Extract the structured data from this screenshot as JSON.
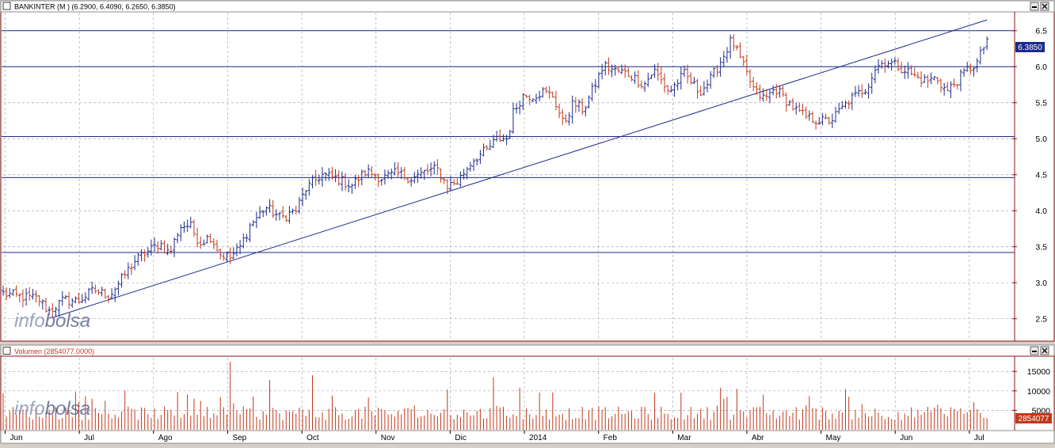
{
  "price_panel": {
    "title": "BANKINTER (M ) (6.2900, 6.4090, 6.2650, 6.3850)",
    "last_price_label": "6.3850",
    "watermark_prefix": "info",
    "watermark_suffix": "bolsa"
  },
  "volume_panel": {
    "title": "Volumen (2854077.0000)",
    "last_volume_label": "2854077",
    "watermark_prefix": "info",
    "watermark_suffix": "bolsa"
  },
  "colors": {
    "up_bar": "#1c2a8c",
    "down_bar": "#c0391b",
    "volume_bar": "#c0391b",
    "trendline": "#1c2a8c",
    "hline": "#1c2a8c",
    "grid": "#a8a8a8",
    "frame": "#8c1010",
    "last_label_bg": "#1c2a8c",
    "volume_label_bg": "#c0391b"
  },
  "chart_data": [
    {
      "type": "ohlc",
      "title": "BANKINTER (M ) (6.2900, 6.4090, 6.2650, 6.3850)",
      "ylim": [
        2.2,
        6.75
      ],
      "y_ticks": [
        2.5,
        3.0,
        3.5,
        4.0,
        4.5,
        5.0,
        5.5,
        6.0,
        6.5
      ],
      "y_tick_labels": [
        "2.5",
        "3.0",
        "3.5",
        "4.0",
        "4.5",
        "5.0",
        "5.5",
        "6.0",
        "6.5"
      ],
      "x_labels": [
        "Jun",
        "Jul",
        "Ago",
        "Sep",
        "Oct",
        "Nov",
        "Dic",
        "2014",
        "Feb",
        "Mar",
        "Abr",
        "May",
        "Jun",
        "Jul"
      ],
      "grid": true,
      "horizontal_lines": [
        6.5,
        6.0,
        5.03,
        4.46,
        3.42
      ],
      "trendline": {
        "start": [
          0.05,
          2.52
        ],
        "end": [
          0.975,
          6.65
        ]
      },
      "last_close": 6.385,
      "anchors": [
        [
          0.0,
          2.85
        ],
        [
          0.02,
          2.8
        ],
        [
          0.035,
          2.78
        ],
        [
          0.045,
          2.6
        ],
        [
          0.06,
          2.76
        ],
        [
          0.075,
          2.75
        ],
        [
          0.09,
          2.9
        ],
        [
          0.105,
          2.82
        ],
        [
          0.115,
          3.0
        ],
        [
          0.13,
          3.3
        ],
        [
          0.145,
          3.45
        ],
        [
          0.155,
          3.55
        ],
        [
          0.165,
          3.4
        ],
        [
          0.175,
          3.78
        ],
        [
          0.185,
          3.8
        ],
        [
          0.195,
          3.55
        ],
        [
          0.205,
          3.65
        ],
        [
          0.215,
          3.4
        ],
        [
          0.225,
          3.35
        ],
        [
          0.235,
          3.5
        ],
        [
          0.245,
          3.8
        ],
        [
          0.26,
          4.05
        ],
        [
          0.275,
          3.9
        ],
        [
          0.29,
          4.0
        ],
        [
          0.3,
          4.3
        ],
        [
          0.315,
          4.5
        ],
        [
          0.33,
          4.45
        ],
        [
          0.345,
          4.35
        ],
        [
          0.36,
          4.55
        ],
        [
          0.375,
          4.45
        ],
        [
          0.39,
          4.52
        ],
        [
          0.405,
          4.45
        ],
        [
          0.42,
          4.55
        ],
        [
          0.43,
          4.58
        ],
        [
          0.44,
          4.35
        ],
        [
          0.45,
          4.4
        ],
        [
          0.465,
          4.7
        ],
        [
          0.48,
          4.85
        ],
        [
          0.49,
          5.0
        ],
        [
          0.5,
          5.0
        ],
        [
          0.505,
          5.35
        ],
        [
          0.515,
          5.6
        ],
        [
          0.525,
          5.6
        ],
        [
          0.535,
          5.65
        ],
        [
          0.545,
          5.6
        ],
        [
          0.555,
          5.2
        ],
        [
          0.565,
          5.5
        ],
        [
          0.575,
          5.4
        ],
        [
          0.585,
          5.7
        ],
        [
          0.595,
          6.02
        ],
        [
          0.605,
          5.95
        ],
        [
          0.62,
          5.9
        ],
        [
          0.635,
          5.75
        ],
        [
          0.645,
          5.95
        ],
        [
          0.66,
          5.65
        ],
        [
          0.675,
          5.9
        ],
        [
          0.69,
          5.65
        ],
        [
          0.7,
          5.8
        ],
        [
          0.712,
          6.1
        ],
        [
          0.722,
          6.38
        ],
        [
          0.732,
          6.05
        ],
        [
          0.745,
          5.65
        ],
        [
          0.755,
          5.55
        ],
        [
          0.765,
          5.7
        ],
        [
          0.775,
          5.55
        ],
        [
          0.785,
          5.4
        ],
        [
          0.795,
          5.3
        ],
        [
          0.81,
          5.25
        ],
        [
          0.82,
          5.25
        ],
        [
          0.83,
          5.4
        ],
        [
          0.84,
          5.55
        ],
        [
          0.855,
          5.7
        ],
        [
          0.865,
          6.0
        ],
        [
          0.875,
          6.08
        ],
        [
          0.885,
          6.02
        ],
        [
          0.895,
          5.95
        ],
        [
          0.905,
          5.85
        ],
        [
          0.915,
          5.8
        ],
        [
          0.925,
          5.85
        ],
        [
          0.935,
          5.65
        ],
        [
          0.945,
          5.8
        ],
        [
          0.955,
          5.95
        ],
        [
          0.965,
          6.05
        ],
        [
          0.975,
          6.38
        ]
      ]
    },
    {
      "type": "bar",
      "title": "Volumen (2854077.0000)",
      "ylim": [
        0,
        18500
      ],
      "y_ticks": [
        5000,
        10000,
        15000
      ],
      "y_tick_labels": [
        "5000",
        "10000",
        "15000"
      ],
      "grid": true,
      "last_volume": 2854077,
      "spikes": [
        [
          0.225,
          17500
        ],
        [
          0.263,
          12800
        ],
        [
          0.305,
          14000
        ],
        [
          0.485,
          13500
        ],
        [
          0.512,
          10800
        ],
        [
          0.71,
          10800
        ],
        [
          0.728,
          10500
        ]
      ]
    }
  ]
}
